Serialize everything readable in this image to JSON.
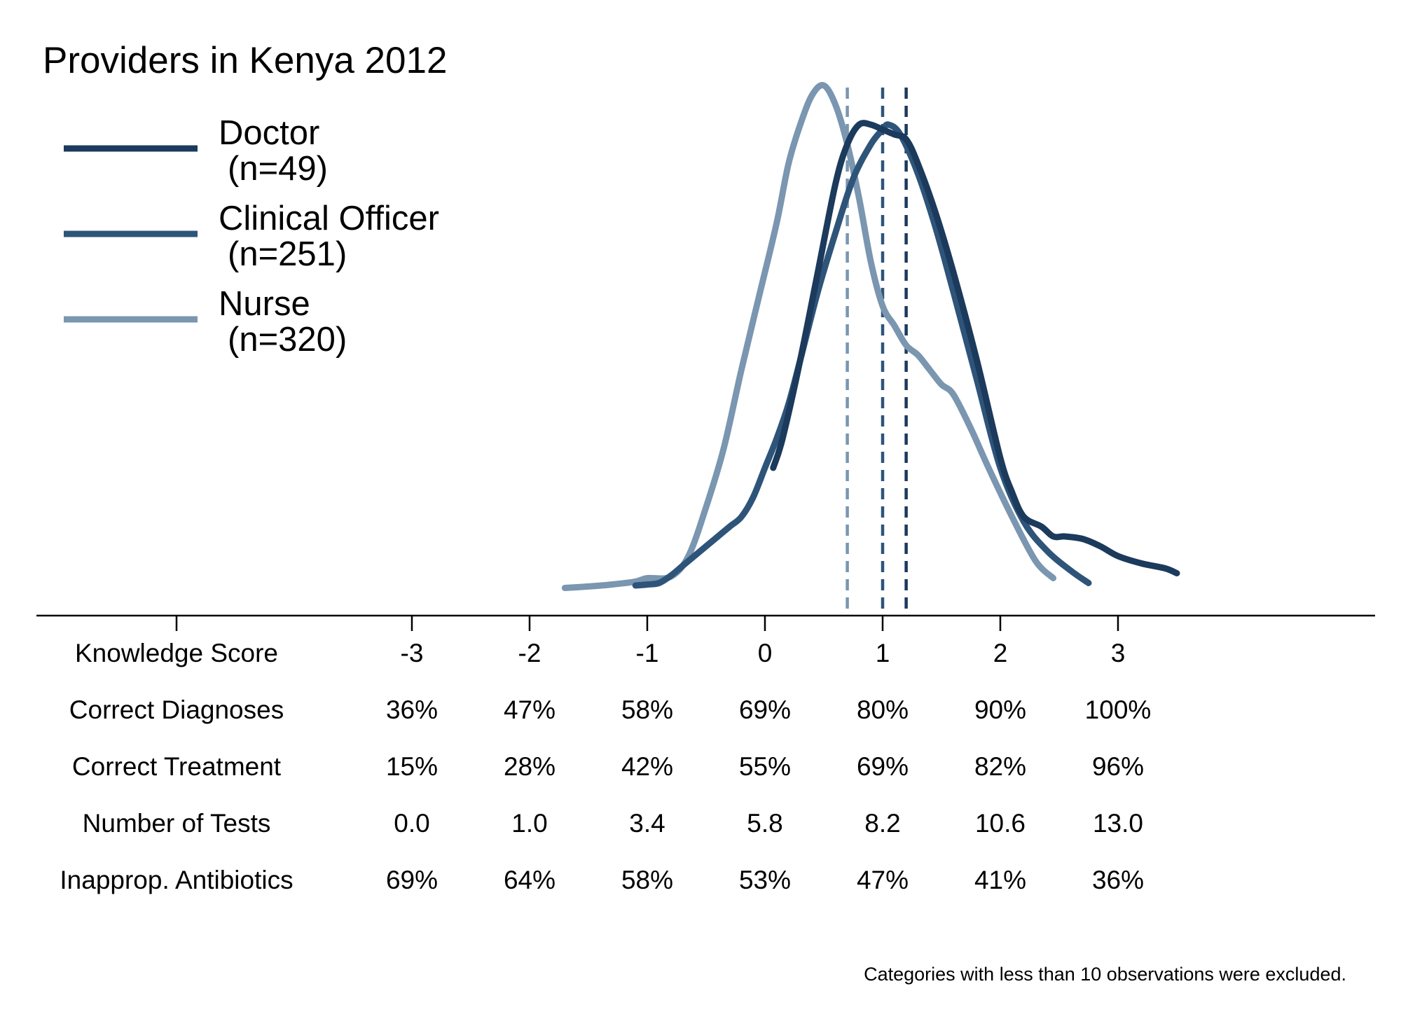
{
  "chart_data": {
    "type": "line",
    "title": "Providers in Kenya 2012",
    "footnote": "Categories with less than 10 observations were excluded.",
    "x_range": [
      -5,
      5.2
    ],
    "series": [
      {
        "name": "Doctor",
        "n_label": "(n=49)",
        "color": "#1b3a5c",
        "mean": 1.2,
        "x": [
          0.07,
          0.15,
          0.3,
          0.45,
          0.6,
          0.7,
          0.8,
          0.9,
          1.0,
          1.1,
          1.2,
          1.3,
          1.45,
          1.6,
          1.8,
          2.0,
          2.1,
          2.2,
          2.35,
          2.45,
          2.55,
          2.7,
          2.85,
          3.0,
          3.2,
          3.4,
          3.5
        ],
        "y": [
          0.3,
          0.36,
          0.52,
          0.7,
          0.88,
          0.96,
          1.0,
          1.0,
          0.99,
          0.98,
          0.97,
          0.92,
          0.82,
          0.7,
          0.52,
          0.32,
          0.25,
          0.2,
          0.18,
          0.16,
          0.16,
          0.155,
          0.14,
          0.12,
          0.105,
          0.095,
          0.085
        ]
      },
      {
        "name": "Clinical Officer",
        "n_label": "(n=251)",
        "color": "#2e5479",
        "mean": 1.0,
        "x": [
          -1.1,
          -1.0,
          -0.9,
          -0.8,
          -0.7,
          -0.6,
          -0.45,
          -0.3,
          -0.2,
          -0.1,
          0.0,
          0.1,
          0.2,
          0.3,
          0.45,
          0.6,
          0.75,
          0.9,
          1.0,
          1.05,
          1.15,
          1.3,
          1.45,
          1.6,
          1.8,
          2.0,
          2.2,
          2.4,
          2.6,
          2.75
        ],
        "y": [
          0.06,
          0.062,
          0.065,
          0.08,
          0.1,
          0.12,
          0.15,
          0.18,
          0.2,
          0.24,
          0.3,
          0.36,
          0.43,
          0.52,
          0.66,
          0.78,
          0.89,
          0.96,
          0.99,
          1.0,
          0.98,
          0.9,
          0.79,
          0.66,
          0.48,
          0.3,
          0.19,
          0.13,
          0.09,
          0.065
        ]
      },
      {
        "name": "Nurse",
        "n_label": "(n=320)",
        "color": "#7a96b0",
        "mean": 0.7,
        "x": [
          -1.7,
          -1.5,
          -1.3,
          -1.1,
          -1.0,
          -0.8,
          -0.65,
          -0.5,
          -0.35,
          -0.2,
          -0.05,
          0.1,
          0.2,
          0.3,
          0.4,
          0.5,
          0.6,
          0.7,
          0.8,
          0.9,
          1.0,
          1.1,
          1.2,
          1.3,
          1.4,
          1.5,
          1.6,
          1.75,
          1.9,
          2.1,
          2.3,
          2.45
        ],
        "y": [
          0.055,
          0.058,
          0.062,
          0.068,
          0.075,
          0.078,
          0.12,
          0.22,
          0.34,
          0.5,
          0.65,
          0.8,
          0.92,
          1.0,
          1.06,
          1.08,
          1.04,
          0.96,
          0.85,
          0.72,
          0.63,
          0.59,
          0.55,
          0.53,
          0.5,
          0.47,
          0.45,
          0.38,
          0.3,
          0.2,
          0.11,
          0.075
        ]
      }
    ],
    "table": {
      "ticks": [
        -3,
        -2,
        -1,
        0,
        1,
        2,
        3
      ],
      "rows": [
        {
          "label": "Knowledge Score",
          "values": [
            "-3",
            "-2",
            "-1",
            "0",
            "1",
            "2",
            "3"
          ]
        },
        {
          "label": "Correct Diagnoses",
          "values": [
            "36%",
            "47%",
            "58%",
            "69%",
            "80%",
            "90%",
            "100%"
          ]
        },
        {
          "label": "Correct Treatment",
          "values": [
            "15%",
            "28%",
            "42%",
            "55%",
            "69%",
            "82%",
            "96%"
          ]
        },
        {
          "label": "Number of Tests",
          "values": [
            "0.0",
            "1.0",
            "3.4",
            "5.8",
            "8.2",
            "10.6",
            "13.0"
          ]
        },
        {
          "label": "Inapprop. Antibiotics",
          "values": [
            "69%",
            "64%",
            "58%",
            "53%",
            "47%",
            "41%",
            "36%"
          ]
        }
      ]
    }
  }
}
